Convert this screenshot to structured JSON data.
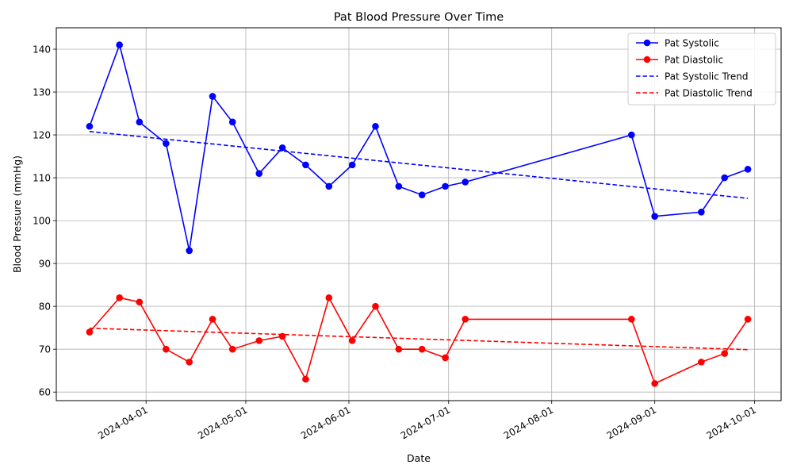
{
  "chart_data": {
    "type": "line",
    "title": "Pat Blood Pressure Over Time",
    "xlabel": "Date",
    "ylabel": "Blood Pressure (mmHg)",
    "x_type": "date",
    "xlim": [
      "2024-03-05",
      "2024-10-09"
    ],
    "ylim": [
      58,
      145
    ],
    "x_ticks": [
      "2024-04-01",
      "2024-05-01",
      "2024-06-01",
      "2024-07-01",
      "2024-08-01",
      "2024-09-01",
      "2024-10-01"
    ],
    "y_ticks": [
      60,
      70,
      80,
      90,
      100,
      110,
      120,
      130,
      140
    ],
    "grid": true,
    "legend_position": "top-right",
    "dates": [
      "2024-03-15",
      "2024-03-24",
      "2024-03-30",
      "2024-04-07",
      "2024-04-14",
      "2024-04-21",
      "2024-04-27",
      "2024-05-05",
      "2024-05-12",
      "2024-05-19",
      "2024-05-26",
      "2024-06-02",
      "2024-06-09",
      "2024-06-16",
      "2024-06-23",
      "2024-06-30",
      "2024-07-06",
      "2024-08-25",
      "2024-09-01",
      "2024-09-15",
      "2024-09-22",
      "2024-09-29"
    ],
    "series": [
      {
        "name": "Pat Systolic",
        "color": "#0000ff",
        "style": "solid-marker",
        "values": [
          122,
          141,
          123,
          118,
          93,
          129,
          123,
          111,
          117,
          113,
          108,
          113,
          122,
          108,
          106,
          108,
          109,
          120,
          101,
          102,
          110,
          112
        ]
      },
      {
        "name": "Pat Diastolic",
        "color": "#ff0000",
        "style": "solid-marker",
        "values": [
          74,
          82,
          81,
          70,
          67,
          77,
          70,
          72,
          73,
          63,
          82,
          72,
          80,
          70,
          70,
          68,
          77,
          77,
          62,
          67,
          69,
          77
        ]
      },
      {
        "name": "Pat Systolic Trend",
        "color": "#0000ff",
        "style": "dashed",
        "x": [
          "2024-03-15",
          "2024-09-29"
        ],
        "values": [
          120.8,
          105.2
        ]
      },
      {
        "name": "Pat Diastolic Trend",
        "color": "#ff0000",
        "style": "dashed",
        "x": [
          "2024-03-15",
          "2024-09-29"
        ],
        "values": [
          74.9,
          69.9
        ]
      }
    ]
  }
}
